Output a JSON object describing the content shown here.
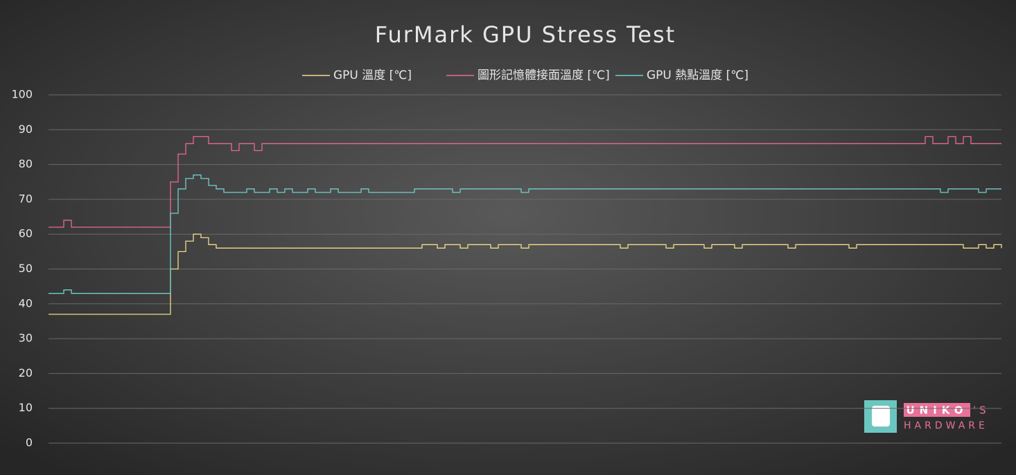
{
  "chart_data": {
    "type": "line",
    "title": "FurMark GPU Stress Test",
    "ylim": [
      0,
      100
    ],
    "yticks": [
      0,
      10,
      20,
      30,
      40,
      50,
      60,
      70,
      80,
      90,
      100
    ],
    "grid": true,
    "legend": "top",
    "series": [
      {
        "name": "GPU 溫度 [℃]",
        "color": "#f2dc8c",
        "values": [
          37,
          37,
          37,
          37,
          37,
          37,
          37,
          37,
          37,
          37,
          37,
          37,
          37,
          37,
          37,
          37,
          50,
          55,
          58,
          60,
          59,
          57,
          56,
          56,
          56,
          56,
          56,
          56,
          56,
          56,
          56,
          56,
          56,
          56,
          56,
          56,
          56,
          56,
          56,
          56,
          56,
          56,
          56,
          56,
          56,
          56,
          56,
          56,
          56,
          57,
          57,
          56,
          57,
          57,
          56,
          57,
          57,
          57,
          56,
          57,
          57,
          57,
          56,
          57,
          57,
          57,
          57,
          57,
          57,
          57,
          57,
          57,
          57,
          57,
          57,
          56,
          57,
          57,
          57,
          57,
          57,
          56,
          57,
          57,
          57,
          57,
          56,
          57,
          57,
          57,
          56,
          57,
          57,
          57,
          57,
          57,
          57,
          56,
          57,
          57,
          57,
          57,
          57,
          57,
          57,
          56,
          57,
          57,
          57,
          57,
          57,
          57,
          57,
          57,
          57,
          57,
          57,
          57,
          57,
          57,
          56,
          56,
          57,
          56,
          57,
          56
        ]
      },
      {
        "name": "圖形記憶體接面溫度 [℃]",
        "color": "#e86a92",
        "values": [
          62,
          62,
          64,
          62,
          62,
          62,
          62,
          62,
          62,
          62,
          62,
          62,
          62,
          62,
          62,
          62,
          75,
          83,
          86,
          88,
          88,
          86,
          86,
          86,
          84,
          86,
          86,
          84,
          86,
          86,
          86,
          86,
          86,
          86,
          86,
          86,
          86,
          86,
          86,
          86,
          86,
          86,
          86,
          86,
          86,
          86,
          86,
          86,
          86,
          86,
          86,
          86,
          86,
          86,
          86,
          86,
          86,
          86,
          86,
          86,
          86,
          86,
          86,
          86,
          86,
          86,
          86,
          86,
          86,
          86,
          86,
          86,
          86,
          86,
          86,
          86,
          86,
          86,
          86,
          86,
          86,
          86,
          86,
          86,
          86,
          86,
          86,
          86,
          86,
          86,
          86,
          86,
          86,
          86,
          86,
          86,
          86,
          86,
          86,
          86,
          86,
          86,
          86,
          86,
          86,
          86,
          86,
          86,
          86,
          86,
          86,
          86,
          86,
          86,
          86,
          88,
          86,
          86,
          88,
          86,
          88,
          86,
          86,
          86,
          86,
          86
        ]
      },
      {
        "name": "GPU 熱點溫度 [℃]",
        "color": "#6fd0cc",
        "values": [
          43,
          43,
          44,
          43,
          43,
          43,
          43,
          43,
          43,
          43,
          43,
          43,
          43,
          43,
          43,
          43,
          66,
          73,
          76,
          77,
          76,
          74,
          73,
          72,
          72,
          72,
          73,
          72,
          72,
          73,
          72,
          73,
          72,
          72,
          73,
          72,
          72,
          73,
          72,
          72,
          72,
          73,
          72,
          72,
          72,
          72,
          72,
          72,
          73,
          73,
          73,
          73,
          73,
          72,
          73,
          73,
          73,
          73,
          73,
          73,
          73,
          73,
          72,
          73,
          73,
          73,
          73,
          73,
          73,
          73,
          73,
          73,
          73,
          73,
          73,
          73,
          73,
          73,
          73,
          73,
          73,
          73,
          73,
          73,
          73,
          73,
          73,
          73,
          73,
          73,
          73,
          73,
          73,
          73,
          73,
          73,
          73,
          73,
          73,
          73,
          73,
          73,
          73,
          73,
          73,
          73,
          73,
          73,
          73,
          73,
          73,
          73,
          73,
          73,
          73,
          73,
          73,
          72,
          73,
          73,
          73,
          73,
          72,
          73,
          73,
          73
        ]
      }
    ]
  },
  "logo": {
    "name": "UNIKO",
    "suffix": "'S",
    "tagline": "HARDWARE"
  }
}
